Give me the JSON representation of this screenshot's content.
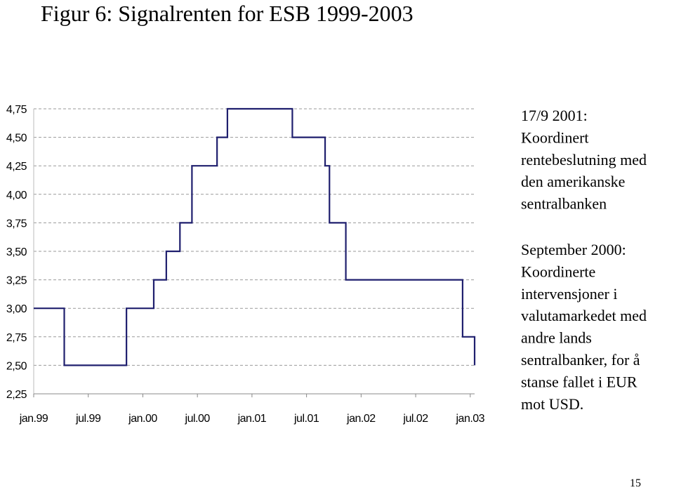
{
  "chart_data": {
    "type": "step",
    "title": "Figur 6: Signalrenten for ESB 1999-2003",
    "x": [
      1999.0,
      1999.28,
      1999.85,
      2000.1,
      2000.215,
      2000.34,
      2000.45,
      2000.68,
      2000.775,
      2001.37,
      2001.67,
      2001.71,
      2001.86,
      2002.93,
      2003.04
    ],
    "series": [
      {
        "color": "#1f1f6e",
        "values": [
          3.0,
          2.5,
          3.0,
          3.25,
          3.5,
          3.75,
          4.25,
          4.5,
          4.75,
          4.5,
          4.25,
          3.75,
          3.25,
          2.75,
          2.5
        ]
      }
    ],
    "xlim": [
      1999.0,
      2003.04
    ],
    "xticks": [
      {
        "value": 1999.0,
        "label": "jan.99"
      },
      {
        "value": 1999.5,
        "label": "jul.99"
      },
      {
        "value": 2000.0,
        "label": "jan.00"
      },
      {
        "value": 2000.5,
        "label": "jul.00"
      },
      {
        "value": 2001.0,
        "label": "jan.01"
      },
      {
        "value": 2001.5,
        "label": "jul.01"
      },
      {
        "value": 2002.0,
        "label": "jan.02"
      },
      {
        "value": 2002.5,
        "label": "jul.02"
      },
      {
        "value": 2003.0,
        "label": "jan.03"
      }
    ],
    "ylim": [
      2.25,
      4.75
    ],
    "yticks": [
      {
        "value": 2.25,
        "label": "2,25"
      },
      {
        "value": 2.5,
        "label": "2,50"
      },
      {
        "value": 2.75,
        "label": "2,75"
      },
      {
        "value": 3.0,
        "label": "3,00"
      },
      {
        "value": 3.25,
        "label": "3,25"
      },
      {
        "value": 3.5,
        "label": "3,50"
      },
      {
        "value": 3.75,
        "label": "3,75"
      },
      {
        "value": 4.0,
        "label": "4,00"
      },
      {
        "value": 4.25,
        "label": "4,25"
      },
      {
        "value": 4.5,
        "label": "4,50"
      },
      {
        "value": 4.75,
        "label": "4,75"
      }
    ],
    "grid": true,
    "annotations": [
      [
        "17/9 2001:",
        "Koordinert",
        "rentebeslutning med",
        "den amerikanske",
        "sentralbanken"
      ],
      [
        "September 2000:",
        "Koordinerte",
        "intervensjoner i",
        "valutamarkedet med",
        "andre lands",
        "sentralbanker, for å",
        "stanse fallet i EUR",
        "mot USD."
      ]
    ]
  },
  "page_number": "15"
}
